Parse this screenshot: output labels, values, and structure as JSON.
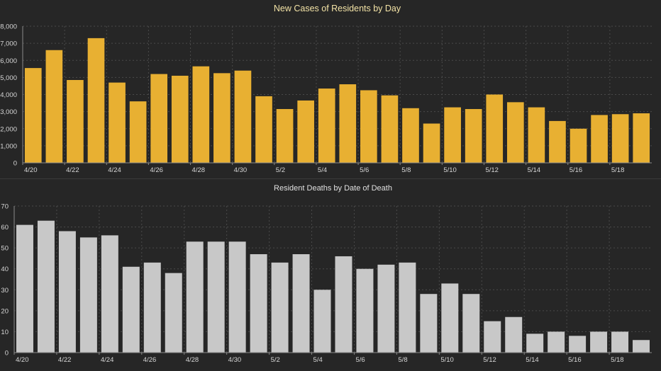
{
  "colors": {
    "background": "#262626",
    "grid": "#4a4a4a",
    "axis": "#8a8a8a",
    "tick_text": "#d6d6d6",
    "cases_bar": "#e8b032",
    "cases_title": "#f3e3a6",
    "deaths_bar": "#c8c8c8",
    "deaths_title": "#e0e0e0"
  },
  "chart_data": [
    {
      "type": "bar",
      "title": "New Cases of Residents by Day",
      "xlabel": "",
      "ylabel": "",
      "categories": [
        "4/20",
        "4/21",
        "4/22",
        "4/23",
        "4/24",
        "4/25",
        "4/26",
        "4/27",
        "4/28",
        "4/29",
        "4/30",
        "5/1",
        "5/2",
        "5/3",
        "5/4",
        "5/5",
        "5/6",
        "5/7",
        "5/8",
        "5/9",
        "5/10",
        "5/11",
        "5/12",
        "5/13",
        "5/14",
        "5/15",
        "5/16",
        "5/17",
        "5/18",
        "5/19"
      ],
      "tick_labels": [
        "4/20",
        "",
        "4/22",
        "",
        "4/24",
        "",
        "4/26",
        "",
        "4/28",
        "",
        "4/30",
        "",
        "5/2",
        "",
        "5/4",
        "",
        "5/6",
        "",
        "5/8",
        "",
        "5/10",
        "",
        "5/12",
        "",
        "5/14",
        "",
        "5/16",
        "",
        "5/18",
        ""
      ],
      "values": [
        5550,
        6600,
        4850,
        7300,
        4700,
        3600,
        5200,
        5100,
        5650,
        5250,
        5400,
        3900,
        3150,
        3650,
        4350,
        4600,
        4250,
        3950,
        3200,
        2300,
        3250,
        3150,
        4000,
        3550,
        3250,
        2450,
        2000,
        2800,
        2850,
        2900
      ],
      "ylim": [
        0,
        8000
      ],
      "yticks": [
        0,
        1000,
        2000,
        3000,
        4000,
        5000,
        6000,
        7000,
        8000
      ],
      "ytick_labels": [
        "0",
        "1,000",
        "2,000",
        "3,000",
        "4,000",
        "5,000",
        "6,000",
        "7,000",
        "8,000"
      ],
      "grid": true,
      "legend": "none"
    },
    {
      "type": "bar",
      "title": "Resident Deaths by Date of Death",
      "xlabel": "",
      "ylabel": "",
      "categories": [
        "4/20",
        "4/21",
        "4/22",
        "4/23",
        "4/24",
        "4/25",
        "4/26",
        "4/27",
        "4/28",
        "4/29",
        "4/30",
        "5/1",
        "5/2",
        "5/3",
        "5/4",
        "5/5",
        "5/6",
        "5/7",
        "5/8",
        "5/9",
        "5/10",
        "5/11",
        "5/12",
        "5/13",
        "5/14",
        "5/15",
        "5/16",
        "5/17",
        "5/18",
        "5/19"
      ],
      "tick_labels": [
        "4/20",
        "",
        "4/22",
        "",
        "4/24",
        "",
        "4/26",
        "",
        "4/28",
        "",
        "4/30",
        "",
        "5/2",
        "",
        "5/4",
        "",
        "5/6",
        "",
        "5/8",
        "",
        "5/10",
        "",
        "5/12",
        "",
        "5/14",
        "",
        "5/16",
        "",
        "5/18",
        ""
      ],
      "values": [
        61,
        63,
        58,
        55,
        56,
        41,
        43,
        38,
        53,
        53,
        53,
        47,
        43,
        47,
        30,
        46,
        40,
        42,
        43,
        28,
        33,
        28,
        15,
        17,
        9,
        10,
        8,
        10,
        10,
        6
      ],
      "ylim": [
        0,
        70
      ],
      "yticks": [
        0,
        10,
        20,
        30,
        40,
        50,
        60,
        70
      ],
      "ytick_labels": [
        "0",
        "10",
        "20",
        "30",
        "40",
        "50",
        "60",
        "70"
      ],
      "grid": true,
      "legend": "none"
    }
  ]
}
